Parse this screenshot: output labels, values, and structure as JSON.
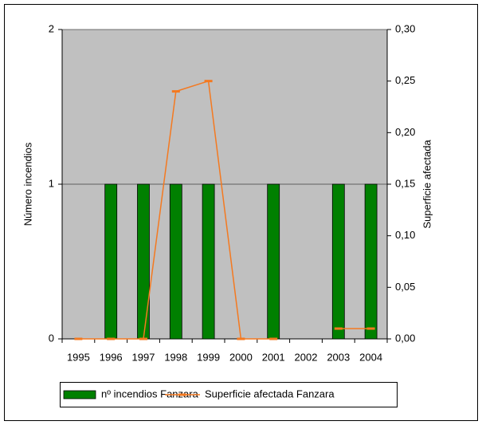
{
  "chart_data": {
    "type": "bar",
    "categories": [
      "1995",
      "1996",
      "1997",
      "1998",
      "1999",
      "2000",
      "2001",
      "2002",
      "2003",
      "2004"
    ],
    "series": [
      {
        "name": "nº incendios Fanzara",
        "type": "bar",
        "color": "#008000",
        "values": [
          0,
          1,
          1,
          1,
          1,
          0,
          1,
          0,
          1,
          1
        ]
      },
      {
        "name": "Superficie afectada Fanzara",
        "type": "line",
        "axis": "y2",
        "color": "#f47920",
        "values": [
          0,
          0,
          0,
          0.24,
          0.25,
          0,
          0,
          null,
          0.01,
          0.01
        ]
      }
    ],
    "ylabel": "Número incendios",
    "y2label": "Superficie afectada",
    "ylim": [
      0,
      2
    ],
    "yticks": [
      0,
      1,
      2
    ],
    "y2lim": [
      0,
      0.3
    ],
    "y2ticks": [
      {
        "value": 0,
        "label": "0,00"
      },
      {
        "value": 0.05,
        "label": "0,05"
      },
      {
        "value": 0.1,
        "label": "0,10"
      },
      {
        "value": 0.15,
        "label": "0,15"
      },
      {
        "value": 0.2,
        "label": "0,20"
      },
      {
        "value": 0.25,
        "label": "0,25"
      },
      {
        "value": 0.3,
        "label": "0,30"
      }
    ],
    "grid": true,
    "plot_background": "#c0c0c0",
    "legend": "bottom"
  }
}
